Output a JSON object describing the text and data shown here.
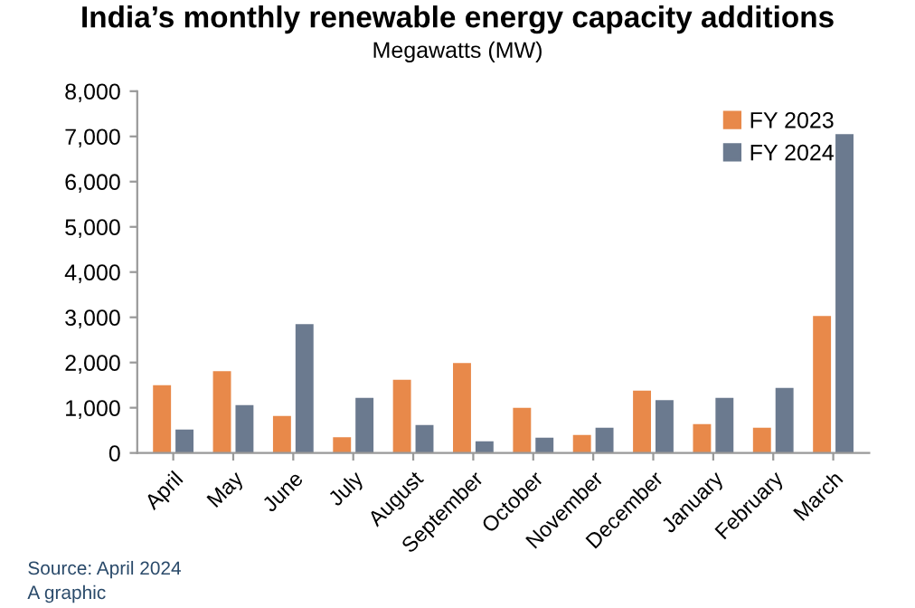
{
  "chart_data": {
    "type": "bar",
    "title": "India’s monthly renewable energy capacity additions",
    "subtitle": "Megawatts (MW)",
    "categories": [
      "April",
      "May",
      "June",
      "July",
      "August",
      "September",
      "October",
      "November",
      "December",
      "January",
      "February",
      "March"
    ],
    "series": [
      {
        "name": "FY 2023",
        "color": "#e8894a",
        "values": [
          1500,
          1810,
          820,
          350,
          1620,
          1990,
          1000,
          400,
          1380,
          640,
          560,
          3030
        ]
      },
      {
        "name": "FY 2024",
        "color": "#6b7a8f",
        "values": [
          520,
          1060,
          2850,
          1220,
          620,
          260,
          340,
          560,
          1170,
          1220,
          1440,
          7050
        ]
      }
    ],
    "ylim": [
      0,
      8000
    ],
    "yticks": [
      {
        "value": 0,
        "label": "0"
      },
      {
        "value": 1000,
        "label": "1,000"
      },
      {
        "value": 2000,
        "label": "2,000"
      },
      {
        "value": 3000,
        "label": "3,000"
      },
      {
        "value": 4000,
        "label": "4,000"
      },
      {
        "value": 5000,
        "label": "5,000"
      },
      {
        "value": 6000,
        "label": "6,000"
      },
      {
        "value": 7000,
        "label": "7,000"
      },
      {
        "value": 8000,
        "label": "8,000"
      }
    ],
    "grid": false,
    "legend": "top right",
    "annotations": [
      "Source: April 2024",
      "A graphic"
    ]
  }
}
